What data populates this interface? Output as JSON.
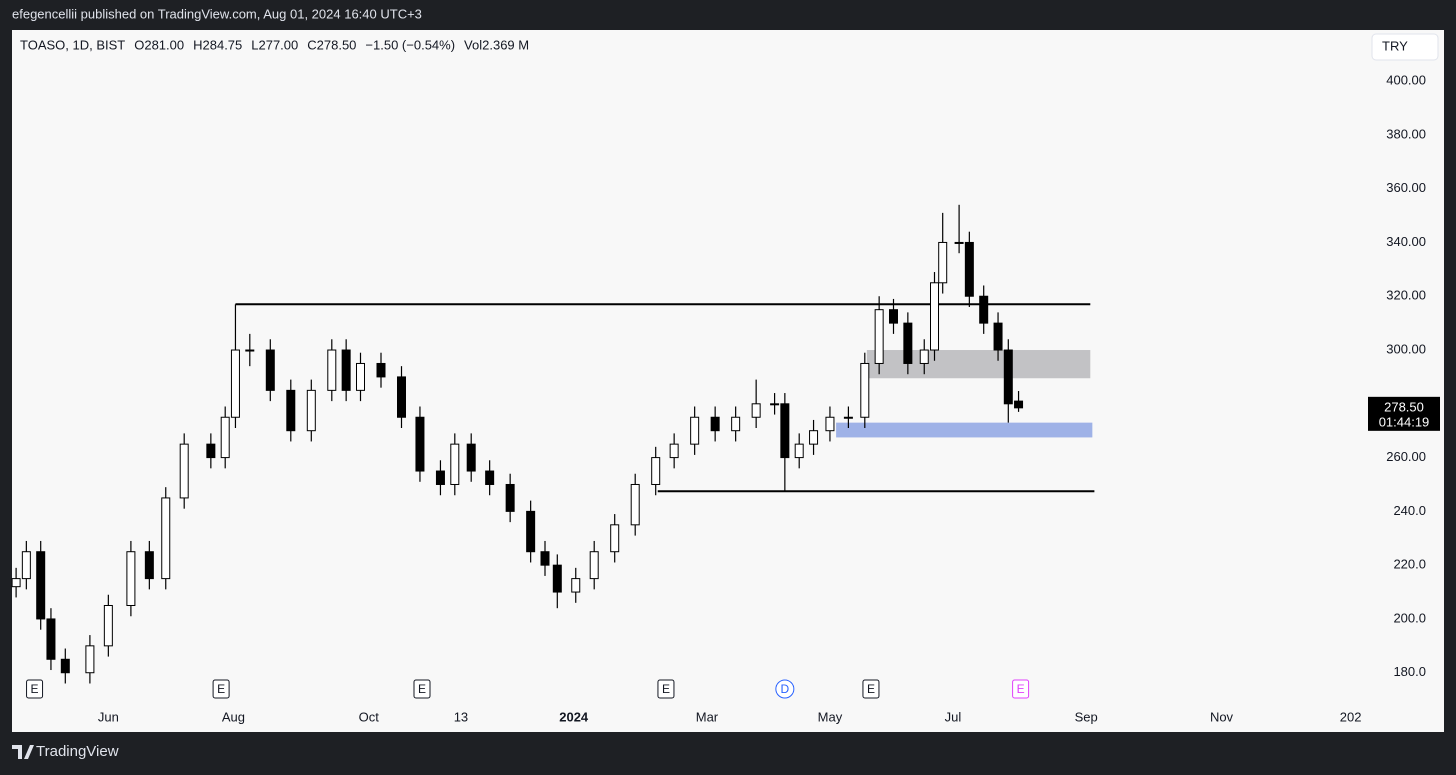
{
  "header": {
    "published": "efegencellii published on TradingView.com, Aug 01, 2024 16:40 UTC+3",
    "legend": [
      "TOASO, 1D, BIST",
      "O281.00",
      "H284.75",
      "L277.00",
      "C278.50",
      "−1.50 (−0.54%)",
      "Vol2.369 M"
    ],
    "currency": "TRY"
  },
  "footer": {
    "brand": "TradingView"
  },
  "chart_data": {
    "type": "candlestick",
    "x": [
      -14,
      -9,
      -2,
      3,
      10,
      22,
      31,
      42,
      51,
      59,
      68,
      81,
      88,
      93,
      100,
      110,
      120,
      130,
      140,
      147,
      154,
      164,
      174,
      183,
      193,
      200,
      208,
      217,
      227,
      237,
      244,
      250,
      259,
      268,
      278,
      288,
      298,
      307,
      317,
      327,
      337,
      347,
      356,
      361,
      368,
      375,
      383,
      392,
      400,
      407,
      414,
      421,
      429,
      434,
      438,
      446,
      451,
      458,
      465,
      470,
      475
    ],
    "open": [
      212,
      215,
      225,
      200,
      185,
      180,
      190,
      205,
      225,
      215,
      245,
      265,
      260,
      275,
      300,
      300,
      285,
      270,
      285,
      300,
      285,
      295,
      290,
      275,
      255,
      250,
      265,
      255,
      250,
      240,
      225,
      220,
      210,
      215,
      225,
      235,
      250,
      260,
      265,
      275,
      270,
      275,
      280,
      280,
      260,
      265,
      270,
      275,
      275,
      295,
      315,
      310,
      295,
      300,
      325,
      340,
      340,
      320,
      310,
      300,
      281
    ],
    "high": [
      219,
      229,
      229,
      204,
      189,
      194,
      209,
      229,
      229,
      249,
      269,
      269,
      279,
      317,
      306,
      304,
      289,
      289,
      304,
      304,
      299,
      299,
      294,
      279,
      259,
      269,
      269,
      259,
      254,
      244,
      229,
      224,
      219,
      229,
      239,
      254,
      264,
      269,
      279,
      279,
      279,
      289,
      284,
      284,
      269,
      274,
      279,
      279,
      299,
      320,
      319,
      314,
      304,
      329,
      351,
      354,
      344,
      324,
      314,
      304,
      284.75
    ],
    "low": [
      208,
      211,
      196,
      181,
      176,
      176,
      186,
      201,
      211,
      211,
      241,
      256,
      256,
      271,
      294,
      281,
      266,
      266,
      281,
      281,
      281,
      286,
      271,
      251,
      246,
      246,
      251,
      246,
      236,
      221,
      216,
      204,
      206,
      211,
      221,
      231,
      246,
      256,
      261,
      266,
      266,
      271,
      276,
      247.5,
      256,
      261,
      266,
      271,
      271,
      291,
      306,
      291,
      291,
      296,
      321,
      336,
      316,
      306,
      296,
      273,
      277
    ],
    "close": [
      215,
      225,
      200,
      185,
      180,
      190,
      205,
      225,
      215,
      245,
      265,
      260,
      275,
      300,
      300,
      285,
      270,
      285,
      300,
      285,
      295,
      290,
      275,
      255,
      250,
      265,
      255,
      250,
      240,
      225,
      220,
      210,
      215,
      225,
      235,
      250,
      260,
      265,
      275,
      270,
      275,
      280,
      280,
      260,
      265,
      270,
      275,
      275,
      295,
      315,
      310,
      295,
      300,
      325,
      340,
      340,
      320,
      310,
      300,
      280,
      278.5
    ],
    "up_color": "#ffffff",
    "down_color": "#000000",
    "wick_color": "#000000",
    "xlim": [
      -16,
      644
    ],
    "ylim": [
      168,
      419
    ],
    "xticks": [
      {
        "value": 31,
        "label": "Jun"
      },
      {
        "value": 92,
        "label": "Aug"
      },
      {
        "value": 158,
        "label": "Oct"
      },
      {
        "value": 203,
        "label": "13"
      },
      {
        "value": 258,
        "label": "2024"
      },
      {
        "value": 323,
        "label": "Mar"
      },
      {
        "value": 383,
        "label": "May"
      },
      {
        "value": 443,
        "label": "Jul"
      },
      {
        "value": 508,
        "label": "Sep"
      },
      {
        "value": 574,
        "label": "Nov"
      },
      {
        "value": 637,
        "label": "202"
      }
    ],
    "yticks": [
      {
        "value": 400,
        "label": "400.00"
      },
      {
        "value": 380,
        "label": "380.00"
      },
      {
        "value": 360,
        "label": "360.00"
      },
      {
        "value": 340,
        "label": "340.00"
      },
      {
        "value": 320,
        "label": "320.00"
      },
      {
        "value": 300,
        "label": "300.00"
      },
      {
        "value": 280,
        "label": "280.00"
      },
      {
        "value": 260,
        "label": "260.00"
      },
      {
        "value": 240,
        "label": "240.0"
      },
      {
        "value": 220,
        "label": "220.0"
      },
      {
        "value": 200,
        "label": "200.0"
      },
      {
        "value": 180,
        "label": "180.0"
      }
    ],
    "lines": [
      {
        "y": 317,
        "x": [
          93,
          510
        ]
      },
      {
        "y": 247.5,
        "x": [
          299,
          512
        ]
      }
    ],
    "zones": [
      {
        "y": [
          289.5,
          300
        ],
        "x": [
          401,
          510
        ],
        "color": "#b8b8bc"
      },
      {
        "y": [
          267.5,
          273
        ],
        "x": [
          386,
          511
        ],
        "color": "#8fa6e4"
      }
    ],
    "events": [
      {
        "label": "E",
        "x": -5,
        "color": "#131722"
      },
      {
        "label": "E",
        "x": 86,
        "color": "#131722"
      },
      {
        "label": "E",
        "x": 184,
        "color": "#131722"
      },
      {
        "label": "E",
        "x": 303,
        "color": "#131722"
      },
      {
        "label": "D",
        "x": 361,
        "color": "#2962ff"
      },
      {
        "label": "E",
        "x": 403,
        "color": "#131722"
      },
      {
        "label": "E",
        "x": 476,
        "color": "#e040fb"
      }
    ],
    "last_price": {
      "value": 278.5,
      "label": "278.50",
      "countdown": "01:44:19"
    }
  }
}
